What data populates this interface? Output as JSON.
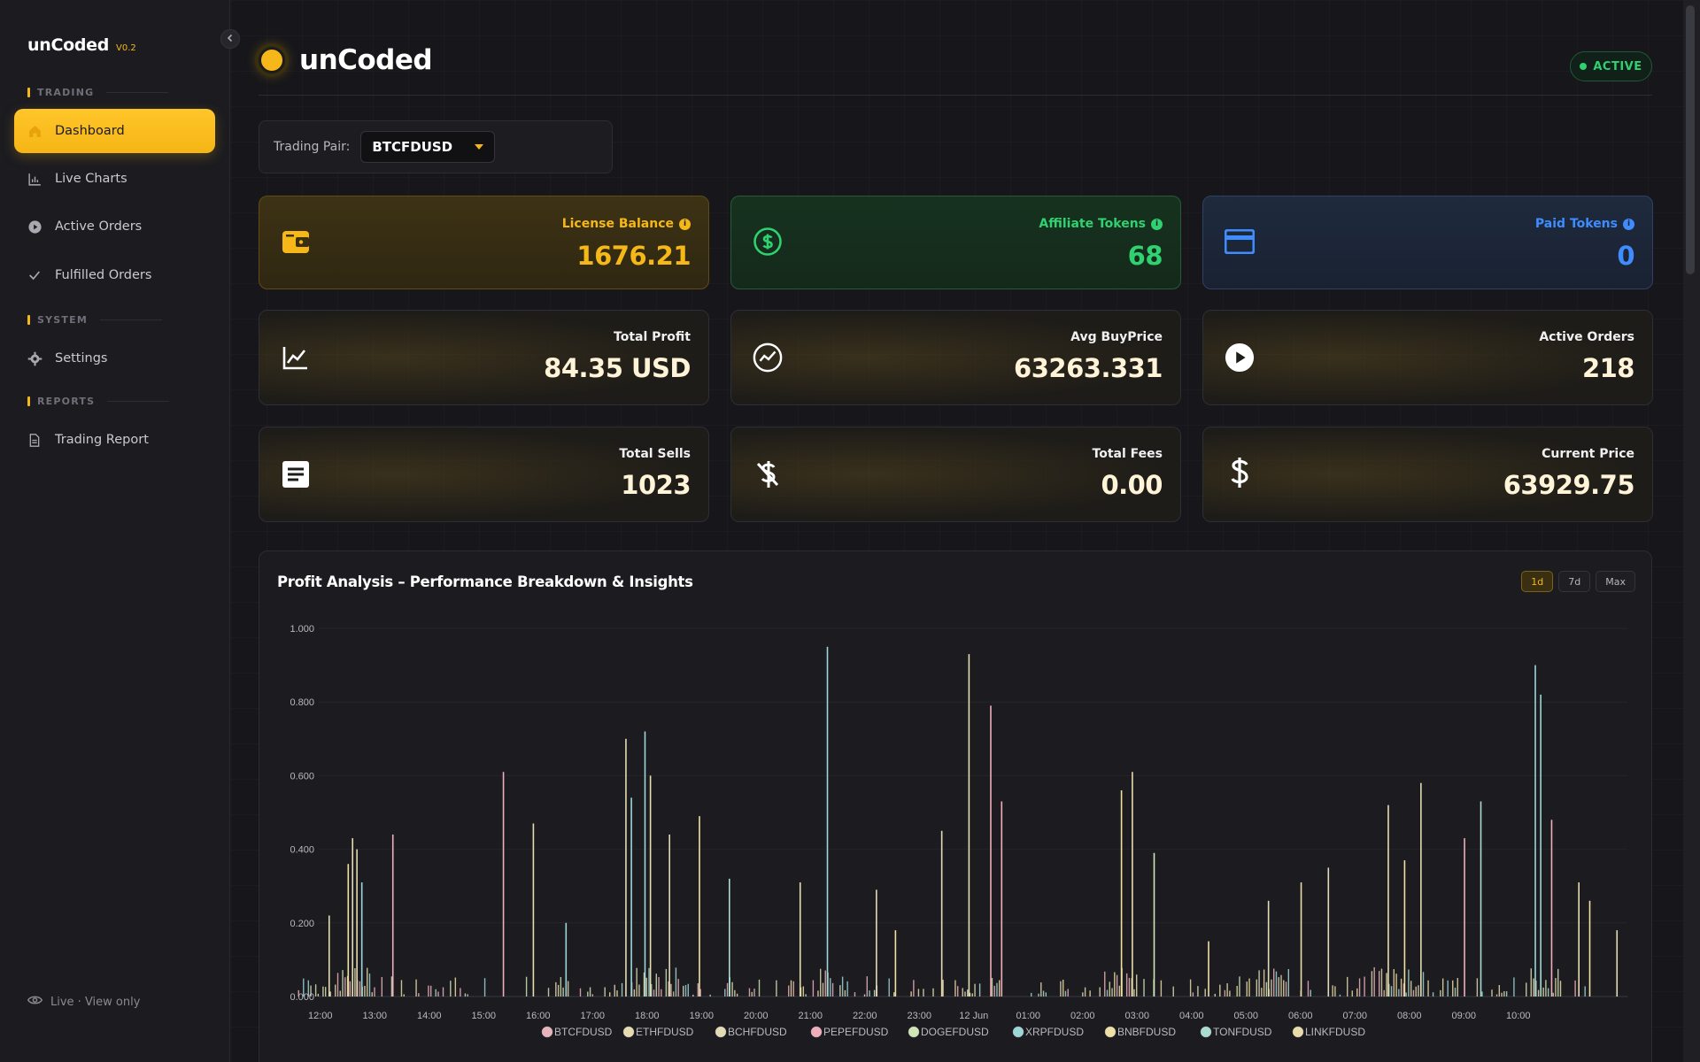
{
  "app": {
    "name": "unCoded",
    "version": "V0.2"
  },
  "sidebar": {
    "sections": [
      {
        "label": "TRADING"
      },
      {
        "label": "SYSTEM"
      },
      {
        "label": "REPORTS"
      }
    ],
    "items": [
      {
        "label": "Dashboard",
        "icon": "home-icon",
        "active": true
      },
      {
        "label": "Live Charts",
        "icon": "bar-chart-icon"
      },
      {
        "label": "Active Orders",
        "icon": "play-circle-icon"
      },
      {
        "label": "Fulfilled Orders",
        "icon": "check-icon"
      },
      {
        "label": "Settings",
        "icon": "gear-icon"
      },
      {
        "label": "Trading Report",
        "icon": "document-icon"
      }
    ],
    "footer": "Live · View only"
  },
  "header": {
    "title": "unCoded",
    "status": "ACTIVE"
  },
  "trading_pair": {
    "label": "Trading Pair:",
    "value": "BTCFDUSD"
  },
  "tokens": [
    {
      "label": "License Balance",
      "value": "1676.21",
      "color": "#f5b818",
      "icon": "wallet-icon"
    },
    {
      "label": "Affiliate Tokens",
      "value": "68",
      "color": "#2fd170",
      "icon": "dollar-circle-icon"
    },
    {
      "label": "Paid Tokens",
      "value": "0",
      "color": "#3f8cff",
      "icon": "credit-card-icon"
    }
  ],
  "stats": [
    {
      "label": "Total Profit",
      "value": "84.35 USD",
      "icon": "trend-chart-icon"
    },
    {
      "label": "Avg BuyPrice",
      "value": "63263.331",
      "icon": "activity-circle-icon"
    },
    {
      "label": "Active Orders",
      "value": "218",
      "icon": "play-circle-icon"
    },
    {
      "label": "Total Sells",
      "value": "1023",
      "icon": "note-icon"
    },
    {
      "label": "Total Fees",
      "value": "0.00",
      "icon": "dollar-off-icon"
    },
    {
      "label": "Current Price",
      "value": "63929.75",
      "icon": "dollar-icon"
    }
  ],
  "chart": {
    "title": "Profit Analysis – Performance Breakdown & Insights",
    "ranges": [
      "1d",
      "7d",
      "Max"
    ],
    "active_range": "1d"
  },
  "chart_data": {
    "type": "bar",
    "ylim": [
      0,
      1.0
    ],
    "yticks": [
      "0.000",
      "0.200",
      "0.400",
      "0.600",
      "0.800",
      "1.000"
    ],
    "xticks": [
      "12:00",
      "13:00",
      "14:00",
      "15:00",
      "16:00",
      "17:00",
      "18:00",
      "19:00",
      "20:00",
      "21:00",
      "22:00",
      "23:00",
      "12 Jun",
      "01:00",
      "02:00",
      "03:00",
      "04:00",
      "05:00",
      "06:00",
      "07:00",
      "08:00",
      "09:00",
      "10:00"
    ],
    "x_start_hour": 11.5,
    "x_end_hour": 35.3,
    "series": [
      {
        "name": "BTCFDUSD",
        "color": "#e8b4bc"
      },
      {
        "name": "ETHFDUSD",
        "color": "#e7dcae"
      },
      {
        "name": "BCHFDUSD",
        "color": "#e1dcb4"
      },
      {
        "name": "PEPEFDUSD",
        "color": "#f1aeb9"
      },
      {
        "name": "DOGEFDUSD",
        "color": "#cfe6b6"
      },
      {
        "name": "XRPFDUSD",
        "color": "#9bd6d9"
      },
      {
        "name": "BNBFDUSD",
        "color": "#efe0a4"
      },
      {
        "name": "TONFDUSD",
        "color": "#a9dcd0"
      },
      {
        "name": "LINKFDUSD",
        "color": "#e9dca8"
      }
    ],
    "bars": [
      [
        12.15,
        0.22,
        1
      ],
      [
        12.5,
        0.36,
        6
      ],
      [
        12.58,
        0.43,
        1
      ],
      [
        12.66,
        0.4,
        2
      ],
      [
        12.75,
        0.31,
        5
      ],
      [
        13.32,
        0.44,
        3
      ],
      [
        15.35,
        0.61,
        3
      ],
      [
        15.9,
        0.47,
        1
      ],
      [
        16.5,
        0.2,
        5
      ],
      [
        17.6,
        0.7,
        2
      ],
      [
        17.7,
        0.54,
        5
      ],
      [
        17.95,
        0.72,
        5
      ],
      [
        18.05,
        0.6,
        1
      ],
      [
        18.4,
        0.44,
        2
      ],
      [
        18.95,
        0.49,
        6
      ],
      [
        19.5,
        0.32,
        7
      ],
      [
        20.8,
        0.31,
        1
      ],
      [
        21.3,
        0.95,
        5
      ],
      [
        22.2,
        0.29,
        2
      ],
      [
        22.55,
        0.18,
        6
      ],
      [
        23.4,
        0.45,
        2
      ],
      [
        23.9,
        0.93,
        1
      ],
      [
        24.3,
        0.79,
        3
      ],
      [
        24.5,
        0.53,
        3
      ],
      [
        26.7,
        0.56,
        6
      ],
      [
        26.9,
        0.61,
        1
      ],
      [
        27.3,
        0.39,
        4
      ],
      [
        28.3,
        0.15,
        6
      ],
      [
        29.4,
        0.26,
        2
      ],
      [
        30.0,
        0.31,
        8
      ],
      [
        30.5,
        0.35,
        2
      ],
      [
        31.6,
        0.52,
        1
      ],
      [
        31.9,
        0.37,
        6
      ],
      [
        32.2,
        0.58,
        2
      ],
      [
        33.0,
        0.43,
        3
      ],
      [
        33.3,
        0.53,
        7
      ],
      [
        34.3,
        0.9,
        5
      ],
      [
        34.4,
        0.82,
        5
      ],
      [
        34.6,
        0.48,
        3
      ],
      [
        35.1,
        0.31,
        1
      ],
      [
        35.3,
        0.26,
        6
      ],
      [
        35.8,
        0.18,
        2
      ]
    ]
  }
}
